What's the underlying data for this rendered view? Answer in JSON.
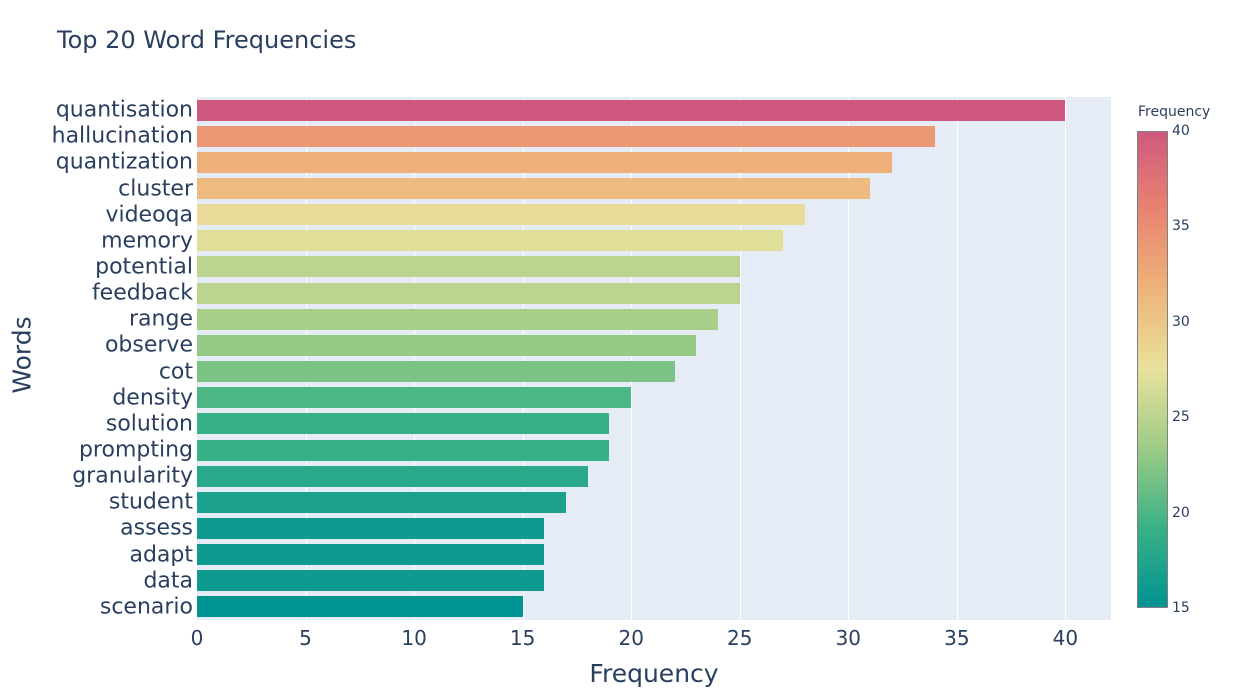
{
  "title": "Top 20 Word Frequencies",
  "xaxis": {
    "title": "Frequency",
    "tick_values": [
      0,
      5,
      10,
      15,
      20,
      25,
      30,
      35,
      40
    ],
    "range": [
      0,
      42.1
    ]
  },
  "yaxis": {
    "title": "Words"
  },
  "colorbar": {
    "title": "Frequency",
    "tick_values": [
      40,
      35,
      30,
      25,
      20,
      15
    ],
    "min": 15,
    "max": 40
  },
  "colorscale_stops": [
    "#009392",
    "#39b185",
    "#9ccb86",
    "#e9e29c",
    "#eeb479",
    "#e88471",
    "#cf597e"
  ],
  "colors": {
    "text": "#2a3f5f",
    "plot_bg": "#e5ecf6",
    "grid": "#ffffff",
    "paper_bg": "#ffffff",
    "colorbar_outline": "#808080"
  },
  "chart_data": {
    "type": "bar",
    "orientation": "horizontal",
    "title": "Top 20 Word Frequencies",
    "xlabel": "Frequency",
    "ylabel": "Words",
    "categories": [
      "quantisation",
      "hallucination",
      "quantization",
      "cluster",
      "videoqa",
      "memory",
      "potential",
      "feedback",
      "range",
      "observe",
      "cot",
      "density",
      "solution",
      "prompting",
      "granularity",
      "student",
      "assess",
      "adapt",
      "data",
      "scenario"
    ],
    "values": [
      40,
      34,
      32,
      31,
      28,
      27,
      25,
      25,
      24,
      23,
      22,
      20,
      19,
      19,
      18,
      17,
      16,
      16,
      16,
      15
    ],
    "xlim": [
      0,
      42.1
    ],
    "grid": true,
    "legend_position": "none",
    "colorbar_title": "Frequency",
    "color_range": [
      15,
      40
    ],
    "colorscale_name": "Temps"
  }
}
